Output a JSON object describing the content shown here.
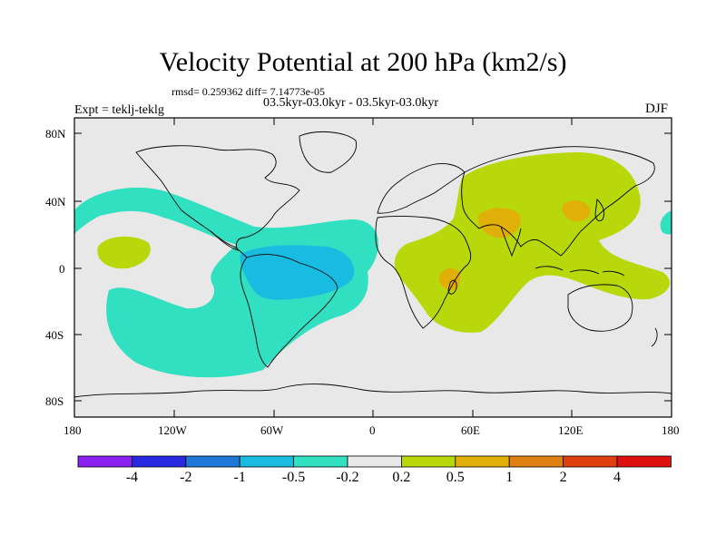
{
  "title": "Velocity Potential at 200 hPa (km2/s)",
  "stats": "rmsd= 0.259362 diff= 7.14773e-05",
  "experiment": "Expt = teklj-teklg",
  "experiment_names": "03.5kyr-03.0kyr - 03.5kyr-03.0kyr",
  "season": "DJF",
  "map": {
    "lat_ticks": [
      "80N",
      "40N",
      "0",
      "40S",
      "80S"
    ],
    "lon_ticks": [
      "180",
      "120W",
      "60W",
      "0",
      "60E",
      "120E",
      "180"
    ],
    "ocean_color": "#e8e8e8",
    "coast_color": "#000000"
  },
  "colorbar": {
    "labels": [
      "-4",
      "-2",
      "-1",
      "-0.5",
      "-0.2",
      "0.2",
      "0.5",
      "1",
      "2",
      "4"
    ],
    "colors": [
      "#8a20f0",
      "#2828e0",
      "#1e78d8",
      "#18bce0",
      "#30e0c0",
      "#e8e8e8",
      "#b8d80c",
      "#e0b008",
      "#e08010",
      "#e04010",
      "#e01010"
    ]
  },
  "contour_levels": {
    "cyan_fill": "#30e0c0",
    "blue_fill": "#18bce0",
    "green_fill": "#b8d80c",
    "orange_fill": "#e0b008"
  }
}
